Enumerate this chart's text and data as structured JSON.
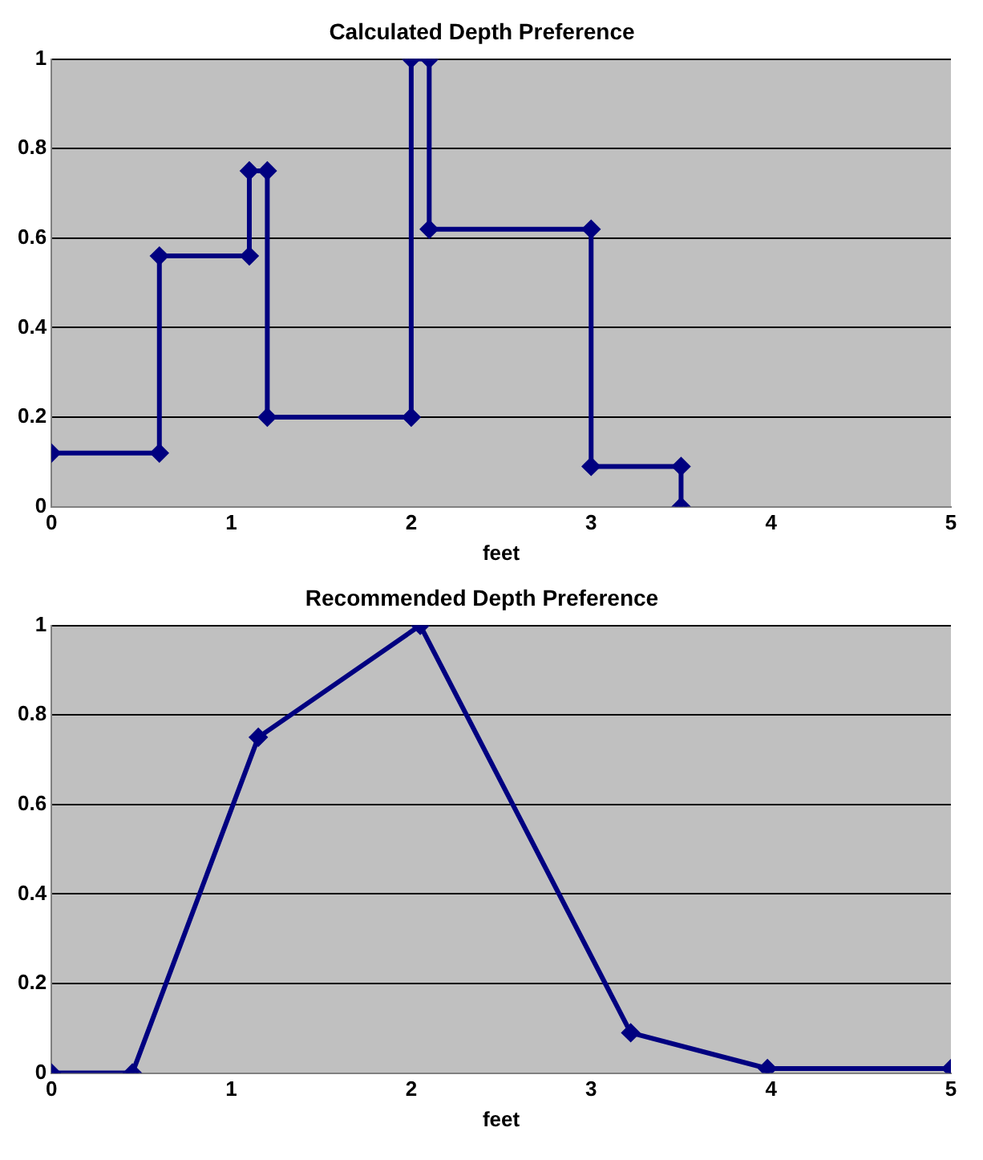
{
  "chart_data": [
    {
      "type": "line",
      "title": "Calculated Depth Preference",
      "xlabel": "feet",
      "xlim": [
        0,
        5
      ],
      "xticks": [
        0,
        1,
        2,
        3,
        4,
        5
      ],
      "ylim": [
        0,
        1
      ],
      "yticks": [
        0,
        0.2,
        0.4,
        0.6,
        0.8,
        1
      ],
      "grid": "y",
      "legend": false,
      "marker": "diamond",
      "line_style": "solid",
      "series": [
        {
          "color": "#000080",
          "x": [
            0,
            0.6,
            0.6,
            1.1,
            1.1,
            1.2,
            1.2,
            2,
            2,
            2.1,
            2.1,
            3,
            3,
            3.5,
            3.5
          ],
          "values": [
            0.12,
            0.12,
            0.56,
            0.56,
            0.75,
            0.75,
            0.2,
            0.2,
            1,
            1,
            0.62,
            0.62,
            0.09,
            0.09,
            0
          ]
        }
      ]
    },
    {
      "type": "line",
      "title": "Recommended Depth Preference",
      "xlabel": "feet",
      "xlim": [
        0,
        5
      ],
      "xticks": [
        0,
        1,
        2,
        3,
        4,
        5
      ],
      "ylim": [
        0,
        1
      ],
      "yticks": [
        0,
        0.2,
        0.4,
        0.6,
        0.8,
        1
      ],
      "grid": "y",
      "legend": false,
      "marker": "diamond",
      "line_style": "solid",
      "series": [
        {
          "color": "#000080",
          "x": [
            0,
            0.45,
            1.15,
            2.05,
            3.22,
            3.98,
            5
          ],
          "values": [
            0,
            0,
            0.75,
            1,
            0.09,
            0.01,
            0.01
          ]
        }
      ]
    }
  ]
}
